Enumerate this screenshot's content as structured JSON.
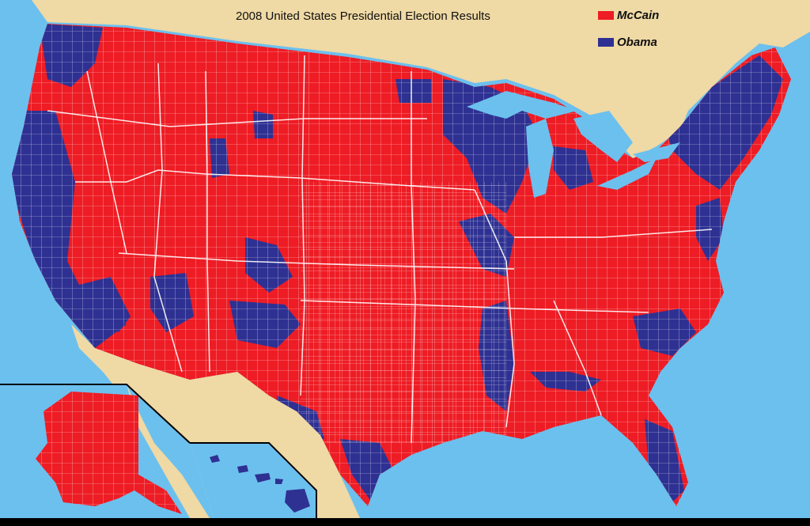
{
  "map": {
    "title": "2008 United States Presidential Election Results",
    "legend": [
      {
        "label": "McCain",
        "color": "#ee1c24"
      },
      {
        "label": "Obama",
        "color": "#2e3192"
      }
    ],
    "colors": {
      "ocean": "#6cc0ee",
      "land": "#efd9a5",
      "mccain": "#ee1c24",
      "obama": "#2e3192",
      "county_border": "#ffffff"
    }
  }
}
